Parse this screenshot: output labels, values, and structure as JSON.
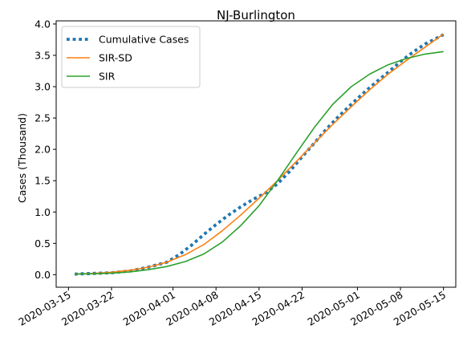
{
  "chart_data": {
    "type": "line",
    "title": "NJ-Burlington",
    "xlabel": "",
    "ylabel": "Cases (Thousand)",
    "xlim": [
      "2020-03-13",
      "2020-05-17"
    ],
    "ylim": [
      -0.2,
      4.05
    ],
    "x_ticks": [
      "2020-03-15",
      "2020-03-22",
      "2020-04-01",
      "2020-04-08",
      "2020-04-15",
      "2020-04-22",
      "2020-05-01",
      "2020-05-08",
      "2020-05-15"
    ],
    "y_ticks": [
      0.0,
      0.5,
      1.0,
      1.5,
      2.0,
      2.5,
      3.0,
      3.5,
      4.0
    ],
    "y_tick_labels": [
      "0.0",
      "0.5",
      "1.0",
      "1.5",
      "2.0",
      "2.5",
      "3.0",
      "3.5",
      "4.0"
    ],
    "grid": false,
    "legend_position": "upper left",
    "series": [
      {
        "name": "Cumulative Cases",
        "color": "#1f77b4",
        "style": "dotted",
        "x": [
          "2020-03-16",
          "2020-03-19",
          "2020-03-22",
          "2020-03-25",
          "2020-03-28",
          "2020-03-31",
          "2020-04-02",
          "2020-04-04",
          "2020-04-06",
          "2020-04-08",
          "2020-04-10",
          "2020-04-12",
          "2020-04-14",
          "2020-04-16",
          "2020-04-18",
          "2020-04-20",
          "2020-04-22",
          "2020-04-24",
          "2020-04-26",
          "2020-04-28",
          "2020-04-30",
          "2020-05-02",
          "2020-05-04",
          "2020-05-06",
          "2020-05-08",
          "2020-05-10",
          "2020-05-12",
          "2020-05-15"
        ],
        "values": [
          0.01,
          0.02,
          0.03,
          0.06,
          0.12,
          0.2,
          0.32,
          0.47,
          0.64,
          0.8,
          0.95,
          1.08,
          1.2,
          1.3,
          1.45,
          1.65,
          1.88,
          2.1,
          2.33,
          2.53,
          2.72,
          2.9,
          3.07,
          3.23,
          3.4,
          3.55,
          3.68,
          3.83
        ]
      },
      {
        "name": "SIR-SD",
        "color": "#ff7f0e",
        "style": "solid",
        "x": [
          "2020-03-16",
          "2020-03-19",
          "2020-03-22",
          "2020-03-25",
          "2020-03-28",
          "2020-03-31",
          "2020-04-03",
          "2020-04-06",
          "2020-04-09",
          "2020-04-12",
          "2020-04-15",
          "2020-04-18",
          "2020-04-21",
          "2020-04-24",
          "2020-04-27",
          "2020-04-30",
          "2020-05-03",
          "2020-05-06",
          "2020-05-09",
          "2020-05-12",
          "2020-05-15"
        ],
        "values": [
          0.01,
          0.02,
          0.04,
          0.07,
          0.12,
          0.2,
          0.32,
          0.48,
          0.7,
          0.95,
          1.22,
          1.5,
          1.8,
          2.1,
          2.4,
          2.68,
          2.95,
          3.2,
          3.42,
          3.63,
          3.84
        ]
      },
      {
        "name": "SIR",
        "color": "#2ca02c",
        "style": "solid",
        "x": [
          "2020-03-16",
          "2020-03-19",
          "2020-03-22",
          "2020-03-25",
          "2020-03-28",
          "2020-03-31",
          "2020-04-03",
          "2020-04-06",
          "2020-04-09",
          "2020-04-12",
          "2020-04-15",
          "2020-04-18",
          "2020-04-21",
          "2020-04-24",
          "2020-04-27",
          "2020-04-30",
          "2020-05-03",
          "2020-05-06",
          "2020-05-09",
          "2020-05-12",
          "2020-05-15"
        ],
        "values": [
          0.01,
          0.015,
          0.025,
          0.045,
          0.08,
          0.13,
          0.21,
          0.33,
          0.52,
          0.78,
          1.1,
          1.5,
          1.93,
          2.35,
          2.72,
          3.0,
          3.2,
          3.35,
          3.45,
          3.52,
          3.56
        ]
      }
    ]
  }
}
